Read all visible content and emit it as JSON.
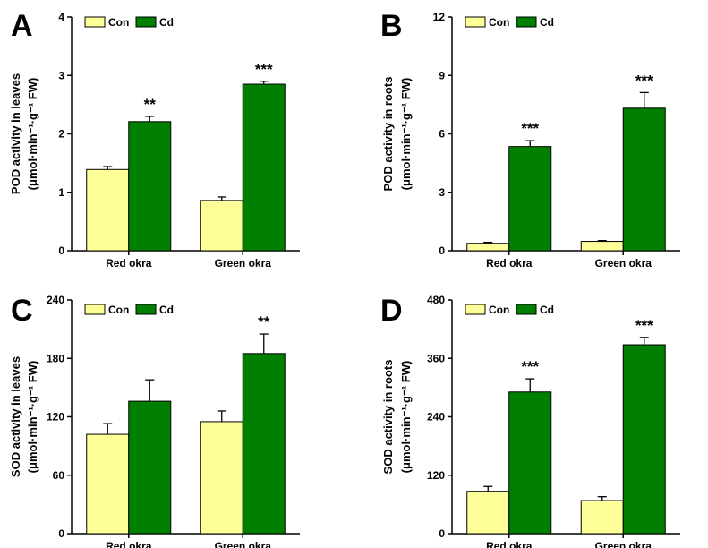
{
  "chart_data": [
    {
      "type": "bar",
      "panel_letter": "A",
      "categories": [
        "Red okra",
        "Green okra"
      ],
      "series": [
        {
          "name": "Con",
          "color": "#ffff99",
          "values": [
            1.39,
            0.86
          ],
          "errors": [
            0.05,
            0.06
          ]
        },
        {
          "name": "Cd",
          "color": "#007f00",
          "values": [
            2.21,
            2.85
          ],
          "errors": [
            0.09,
            0.05
          ]
        }
      ],
      "significance": [
        "**",
        "***"
      ],
      "ylabel_line1": "POD activity in leaves",
      "ylabel_line2": "(μmol·min⁻¹·g⁻¹ FW)",
      "yticks": [
        "0",
        "1",
        "2",
        "3",
        "4"
      ],
      "ylim": [
        0,
        4
      ],
      "legend": "top-left"
    },
    {
      "type": "bar",
      "panel_letter": "B",
      "categories": [
        "Red okra",
        "Green okra"
      ],
      "series": [
        {
          "name": "Con",
          "color": "#ffff99",
          "values": [
            0.38,
            0.48
          ],
          "errors": [
            0.05,
            0.04
          ]
        },
        {
          "name": "Cd",
          "color": "#007f00",
          "values": [
            5.35,
            7.32
          ],
          "errors": [
            0.3,
            0.8
          ]
        }
      ],
      "significance": [
        "***",
        "***"
      ],
      "ylabel_line1": "POD activity in roots",
      "ylabel_line2": "(μmol·min⁻¹·g⁻¹ FW)",
      "yticks": [
        "0",
        "3",
        "6",
        "9",
        "12"
      ],
      "ylim": [
        0,
        12
      ],
      "legend": "top-left"
    },
    {
      "type": "bar",
      "panel_letter": "C",
      "categories": [
        "Red okra",
        "Green okra"
      ],
      "series": [
        {
          "name": "Con",
          "color": "#ffff99",
          "values": [
            102,
            115
          ],
          "errors": [
            11,
            11
          ]
        },
        {
          "name": "Cd",
          "color": "#007f00",
          "values": [
            136,
            185
          ],
          "errors": [
            22,
            20
          ]
        }
      ],
      "significance": [
        "",
        "**"
      ],
      "ylabel_line1": "SOD activity in leaves",
      "ylabel_line2": "(μmol·min⁻¹·g⁻¹ FW)",
      "yticks": [
        "0",
        "60",
        "120",
        "180",
        "240"
      ],
      "ylim": [
        0,
        240
      ],
      "legend": "top-left"
    },
    {
      "type": "bar",
      "panel_letter": "D",
      "categories": [
        "Red okra",
        "Green okra"
      ],
      "series": [
        {
          "name": "Con",
          "color": "#ffff99",
          "values": [
            87,
            68
          ],
          "errors": [
            10,
            8
          ]
        },
        {
          "name": "Cd",
          "color": "#007f00",
          "values": [
            291,
            388
          ],
          "errors": [
            27,
            15
          ]
        }
      ],
      "significance": [
        "***",
        "***"
      ],
      "ylabel_line1": "SOD activity in roots",
      "ylabel_line2": "(μmol·min⁻¹·g⁻¹ FW)",
      "yticks": [
        "0",
        "120",
        "240",
        "360",
        "480"
      ],
      "ylim": [
        0,
        480
      ],
      "legend": "top-left"
    }
  ]
}
